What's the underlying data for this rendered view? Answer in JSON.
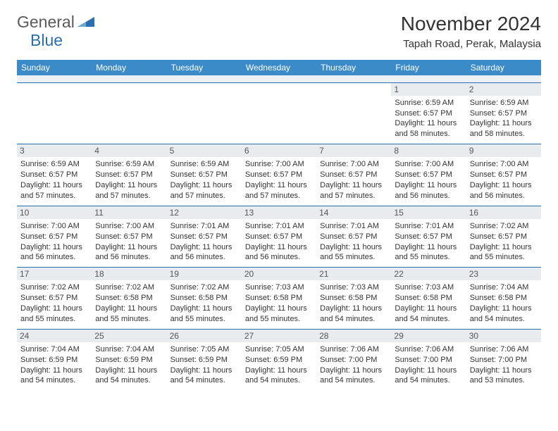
{
  "logo": {
    "part1": "General",
    "part2": "Blue"
  },
  "title": "November 2024",
  "location": "Tapah Road, Perak, Malaysia",
  "colors": {
    "header_bar": "#3b8bc9",
    "week_border": "#2a6fb0",
    "day_num_bg": "#e8ecef",
    "logo_gray": "#5a5a5a",
    "logo_blue": "#2a6fb0"
  },
  "days_of_week": [
    "Sunday",
    "Monday",
    "Tuesday",
    "Wednesday",
    "Thursday",
    "Friday",
    "Saturday"
  ],
  "weeks": [
    [
      null,
      null,
      null,
      null,
      null,
      {
        "n": "1",
        "sunrise": "6:59 AM",
        "sunset": "6:57 PM",
        "daylight": "11 hours and 58 minutes."
      },
      {
        "n": "2",
        "sunrise": "6:59 AM",
        "sunset": "6:57 PM",
        "daylight": "11 hours and 58 minutes."
      }
    ],
    [
      {
        "n": "3",
        "sunrise": "6:59 AM",
        "sunset": "6:57 PM",
        "daylight": "11 hours and 57 minutes."
      },
      {
        "n": "4",
        "sunrise": "6:59 AM",
        "sunset": "6:57 PM",
        "daylight": "11 hours and 57 minutes."
      },
      {
        "n": "5",
        "sunrise": "6:59 AM",
        "sunset": "6:57 PM",
        "daylight": "11 hours and 57 minutes."
      },
      {
        "n": "6",
        "sunrise": "7:00 AM",
        "sunset": "6:57 PM",
        "daylight": "11 hours and 57 minutes."
      },
      {
        "n": "7",
        "sunrise": "7:00 AM",
        "sunset": "6:57 PM",
        "daylight": "11 hours and 57 minutes."
      },
      {
        "n": "8",
        "sunrise": "7:00 AM",
        "sunset": "6:57 PM",
        "daylight": "11 hours and 56 minutes."
      },
      {
        "n": "9",
        "sunrise": "7:00 AM",
        "sunset": "6:57 PM",
        "daylight": "11 hours and 56 minutes."
      }
    ],
    [
      {
        "n": "10",
        "sunrise": "7:00 AM",
        "sunset": "6:57 PM",
        "daylight": "11 hours and 56 minutes."
      },
      {
        "n": "11",
        "sunrise": "7:00 AM",
        "sunset": "6:57 PM",
        "daylight": "11 hours and 56 minutes."
      },
      {
        "n": "12",
        "sunrise": "7:01 AM",
        "sunset": "6:57 PM",
        "daylight": "11 hours and 56 minutes."
      },
      {
        "n": "13",
        "sunrise": "7:01 AM",
        "sunset": "6:57 PM",
        "daylight": "11 hours and 56 minutes."
      },
      {
        "n": "14",
        "sunrise": "7:01 AM",
        "sunset": "6:57 PM",
        "daylight": "11 hours and 55 minutes."
      },
      {
        "n": "15",
        "sunrise": "7:01 AM",
        "sunset": "6:57 PM",
        "daylight": "11 hours and 55 minutes."
      },
      {
        "n": "16",
        "sunrise": "7:02 AM",
        "sunset": "6:57 PM",
        "daylight": "11 hours and 55 minutes."
      }
    ],
    [
      {
        "n": "17",
        "sunrise": "7:02 AM",
        "sunset": "6:57 PM",
        "daylight": "11 hours and 55 minutes."
      },
      {
        "n": "18",
        "sunrise": "7:02 AM",
        "sunset": "6:58 PM",
        "daylight": "11 hours and 55 minutes."
      },
      {
        "n": "19",
        "sunrise": "7:02 AM",
        "sunset": "6:58 PM",
        "daylight": "11 hours and 55 minutes."
      },
      {
        "n": "20",
        "sunrise": "7:03 AM",
        "sunset": "6:58 PM",
        "daylight": "11 hours and 55 minutes."
      },
      {
        "n": "21",
        "sunrise": "7:03 AM",
        "sunset": "6:58 PM",
        "daylight": "11 hours and 54 minutes."
      },
      {
        "n": "22",
        "sunrise": "7:03 AM",
        "sunset": "6:58 PM",
        "daylight": "11 hours and 54 minutes."
      },
      {
        "n": "23",
        "sunrise": "7:04 AM",
        "sunset": "6:58 PM",
        "daylight": "11 hours and 54 minutes."
      }
    ],
    [
      {
        "n": "24",
        "sunrise": "7:04 AM",
        "sunset": "6:59 PM",
        "daylight": "11 hours and 54 minutes."
      },
      {
        "n": "25",
        "sunrise": "7:04 AM",
        "sunset": "6:59 PM",
        "daylight": "11 hours and 54 minutes."
      },
      {
        "n": "26",
        "sunrise": "7:05 AM",
        "sunset": "6:59 PM",
        "daylight": "11 hours and 54 minutes."
      },
      {
        "n": "27",
        "sunrise": "7:05 AM",
        "sunset": "6:59 PM",
        "daylight": "11 hours and 54 minutes."
      },
      {
        "n": "28",
        "sunrise": "7:06 AM",
        "sunset": "7:00 PM",
        "daylight": "11 hours and 54 minutes."
      },
      {
        "n": "29",
        "sunrise": "7:06 AM",
        "sunset": "7:00 PM",
        "daylight": "11 hours and 54 minutes."
      },
      {
        "n": "30",
        "sunrise": "7:06 AM",
        "sunset": "7:00 PM",
        "daylight": "11 hours and 53 minutes."
      }
    ]
  ],
  "labels": {
    "sunrise": "Sunrise:",
    "sunset": "Sunset:",
    "daylight": "Daylight:"
  }
}
